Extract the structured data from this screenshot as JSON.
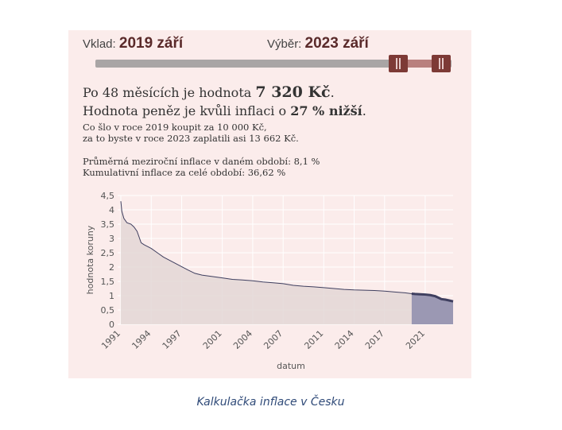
{
  "selector": {
    "start_label": "Vklad:",
    "start_value": "2019 září",
    "end_label": "Výběr:",
    "end_value": "2023 září"
  },
  "result": {
    "line1_prefix": "Po 48 měsících je hodnota",
    "amount": "7 320 Kč",
    "line1_suffix": ".",
    "line2_prefix": "Hodnota peněz je kvůli inflaci o",
    "percent": "27 % nižší",
    "line2_suffix": ".",
    "line3": "Co šlo v roce 2019 koupit za 10 000 Kč,",
    "line4": "za to byste v roce 2023 zaplatili asi 13 662 Kč.",
    "line5": "Průměrná meziroční inflace v daném období: 8,1 %",
    "line6": "Kumulativní inflace za celé období: 36,62 %"
  },
  "colors": {
    "panel_bg": "#fbeceb",
    "line": "#3f3f5f",
    "area_fill": "#e3d7d6",
    "selected_fill": "#9b98b3",
    "accent": "#7d3a36"
  },
  "chart_data": {
    "type": "area",
    "title": "",
    "xlabel": "datum",
    "ylabel": "hodnota koruny",
    "ylim": [
      0,
      4.5
    ],
    "y_ticks": [
      "0",
      "0,5",
      "1",
      "1,5",
      "2",
      "2,5",
      "3",
      "3,5",
      "4",
      "4,5"
    ],
    "x_ticks": [
      "1991",
      "1994",
      "1997",
      "2001",
      "2004",
      "2007",
      "2011",
      "2014",
      "2017",
      "2021"
    ],
    "x_tick_values": [
      1991,
      1994,
      1997,
      2001,
      2004,
      2007,
      2011,
      2014,
      2017,
      2021
    ],
    "xlim": [
      1991,
      2023.75
    ],
    "selected_range": [
      2019.67,
      2023.75
    ],
    "series": [
      {
        "x": [
          1991.0,
          1991.1,
          1991.3,
          1991.6,
          1992.0,
          1992.3,
          1992.6,
          1993.0,
          1993.3,
          1994.0,
          1994.6,
          1995.2,
          1996.0,
          1996.8,
          1997.6,
          1998.3,
          1999.0,
          2000.0,
          2001.0,
          2002.0,
          2003.0,
          2004.0,
          2005.0,
          2006.0,
          2007.0,
          2008.0,
          2009.0,
          2010.0,
          2011.0,
          2012.0,
          2013.0,
          2014.0,
          2015.0,
          2016.0,
          2017.0,
          2018.0,
          2019.0,
          2019.67,
          2020.0,
          2020.5,
          2021.0,
          2021.5,
          2022.0,
          2022.3,
          2022.6,
          2023.0,
          2023.4,
          2023.75
        ],
        "y": [
          4.3,
          3.95,
          3.7,
          3.55,
          3.5,
          3.4,
          3.25,
          2.85,
          2.78,
          2.65,
          2.5,
          2.35,
          2.2,
          2.05,
          1.9,
          1.78,
          1.72,
          1.67,
          1.62,
          1.57,
          1.55,
          1.52,
          1.48,
          1.45,
          1.42,
          1.36,
          1.33,
          1.31,
          1.28,
          1.25,
          1.22,
          1.2,
          1.19,
          1.18,
          1.16,
          1.13,
          1.1,
          1.07,
          1.06,
          1.05,
          1.04,
          1.02,
          0.98,
          0.93,
          0.88,
          0.86,
          0.83,
          0.8
        ]
      }
    ]
  },
  "caption": "Kalkulačka inflace v Česku"
}
